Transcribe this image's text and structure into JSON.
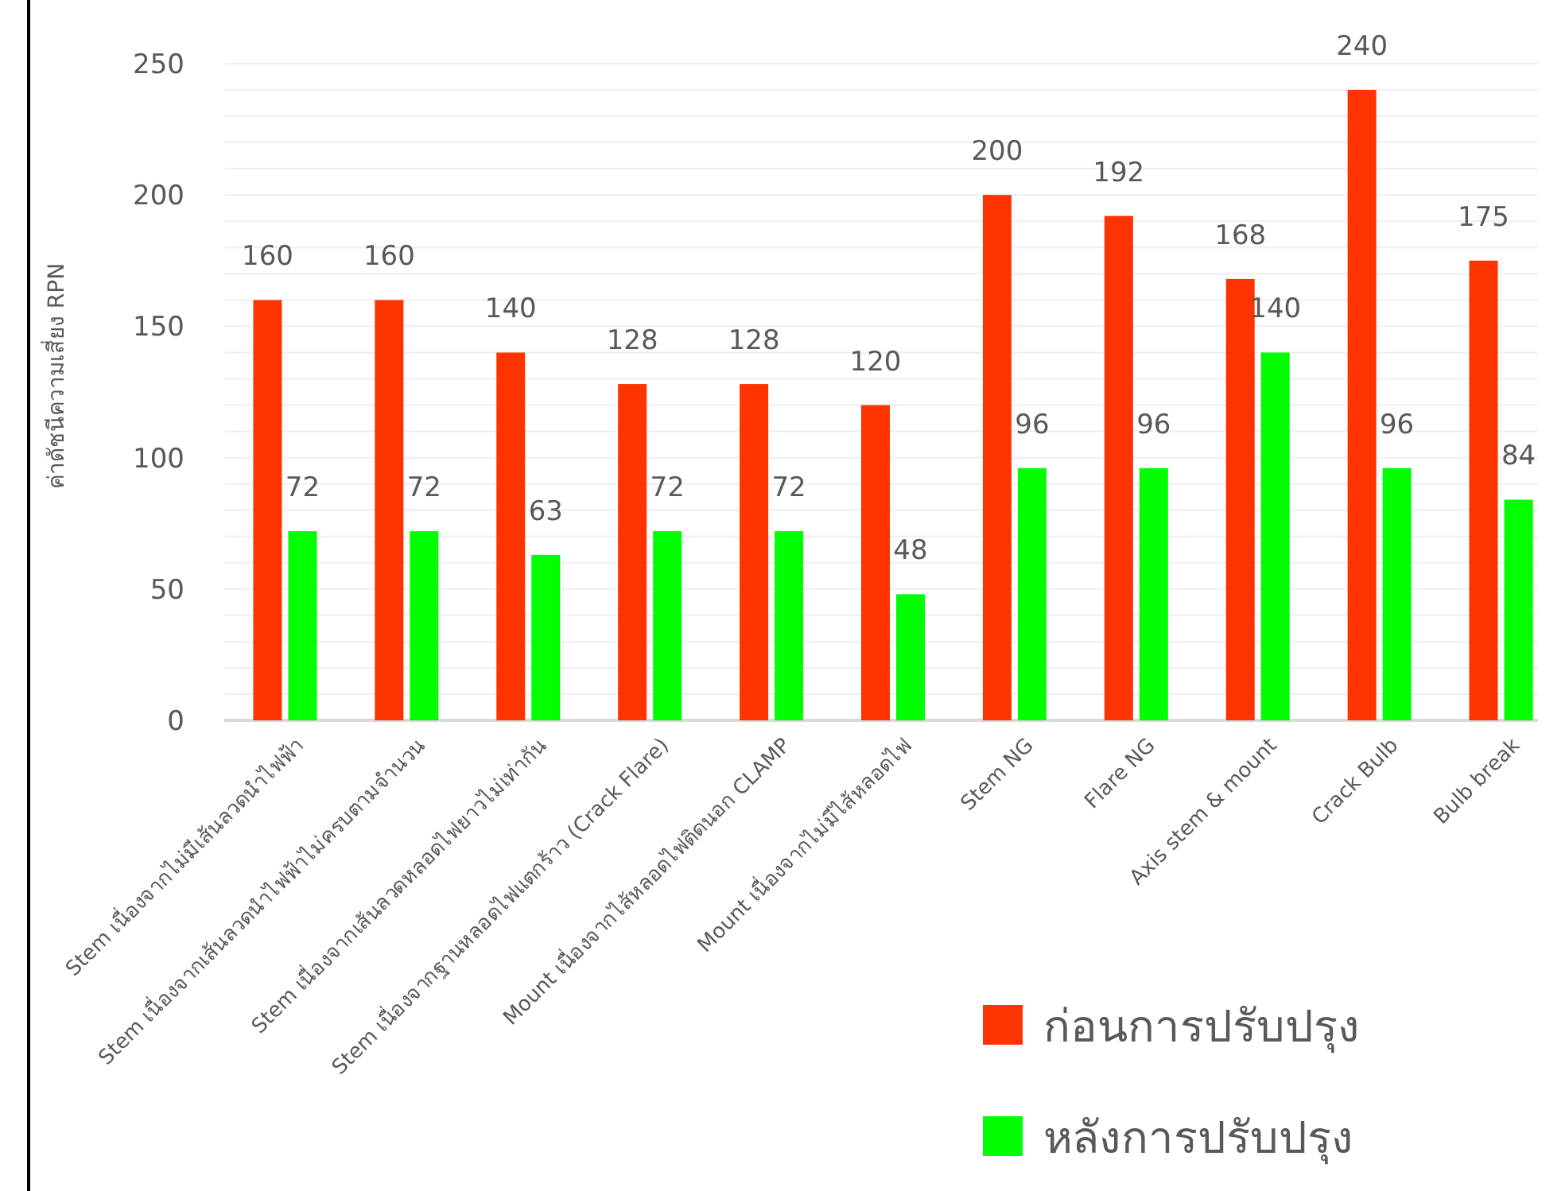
{
  "chart_data": {
    "type": "bar",
    "ylabel": "ค่าดัชนีความเสี่ยง RPN",
    "categories": [
      "Stem เนื่องจากไม่มีเส้นลวดนำไฟฟ้า",
      "Stem เนื่องจากเส้นลวดนำไฟฟ้าไม่ครบตามจำนวน",
      "Stem เนื่องจากเส้นลวดหลอดไฟยาวไม่เท่ากัน",
      "Stem เนื่องจากฐานหลอดไฟแตกร้าว (Crack Flare)",
      "Mount เนื่องจากไส้หลอดไฟติดนอก CLAMP",
      "Mount เนื่องจากไม่มีไส้หลอดไฟ",
      "Stem NG",
      "Flare NG",
      "Axis stem & mount",
      "Crack Bulb",
      "Bulb break"
    ],
    "series": [
      {
        "name": "ก่อนการปรับปรุง",
        "color": "#ff3300",
        "values": [
          160,
          160,
          140,
          128,
          128,
          120,
          200,
          192,
          168,
          240,
          175
        ]
      },
      {
        "name": "หลังการปรับปรุง",
        "color": "#00ff00",
        "values": [
          72,
          72,
          63,
          72,
          72,
          48,
          96,
          96,
          140,
          96,
          84
        ]
      }
    ],
    "ylim": [
      0,
      250
    ],
    "yticks": [
      0,
      {
        "value": 10,
        "label": null
      },
      {
        "value": 20,
        "label": null
      },
      {
        "value": 30,
        "label": null
      },
      {
        "value": 40,
        "label": null
      },
      50,
      {
        "value": 60,
        "label": null
      },
      {
        "value": 70,
        "label": null
      },
      {
        "value": 80,
        "label": null
      },
      {
        "value": 90,
        "label": null
      },
      100,
      {
        "value": 110,
        "label": null
      },
      {
        "value": 120,
        "label": null
      },
      {
        "value": 130,
        "label": null
      },
      {
        "value": 140,
        "label": null
      },
      150,
      {
        "value": 160,
        "label": null
      },
      {
        "value": 170,
        "label": null
      },
      {
        "value": 180,
        "label": null
      },
      {
        "value": 190,
        "label": null
      },
      200,
      {
        "value": 210,
        "label": null
      },
      {
        "value": 220,
        "label": null
      },
      {
        "value": 230,
        "label": null
      },
      {
        "value": 240,
        "label": null
      },
      250
    ],
    "grid": "y",
    "legend": "bottom right",
    "data_labels": true
  }
}
